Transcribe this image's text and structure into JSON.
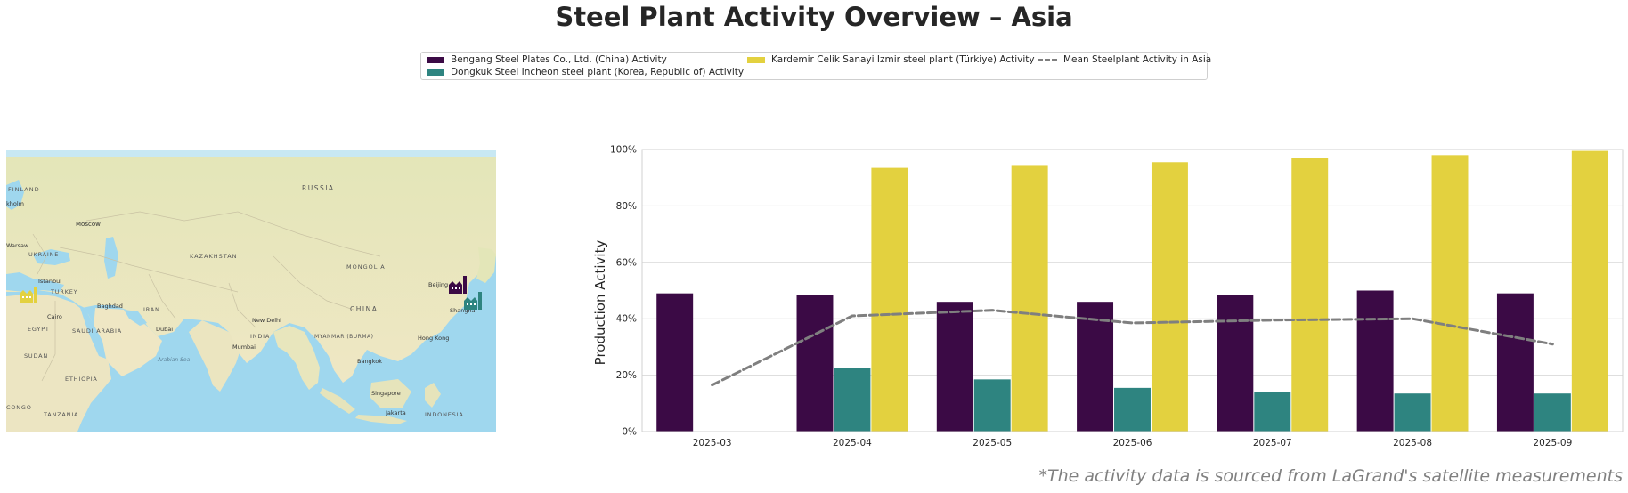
{
  "title": "Steel Plant Activity Overview – Asia",
  "legend": {
    "items": [
      {
        "label": "Bengang Steel Plates Co., Ltd. (China) Activity",
        "color": "#3b0a45"
      },
      {
        "label": "Dongkuk Steel Incheon steel plant (Korea, Republic of) Activity",
        "color": "#2e8480"
      },
      {
        "label": "Kardemir Celik Sanayi Izmir steel plant (Türkiye) Activity",
        "color": "#e3d13f"
      },
      {
        "label": "Mean Steelplant Activity in Asia",
        "color": "#7f7f7f"
      }
    ]
  },
  "map": {
    "labels": {
      "russia": "RUSSIA",
      "finland": "FINLAND",
      "stockholm": "kholm",
      "moscow": "Moscow",
      "warsaw": "Warsaw",
      "ukraine": "UKRAINE",
      "kazakhstan": "KAZAKHSTAN",
      "mongolia": "MONGOLIA",
      "istanbul": "Istanbul",
      "turkey": "TURKEY",
      "beijing": "Beijing",
      "baghdad": "Baghdad",
      "iran": "IRAN",
      "china": "CHINA",
      "shanghai": "Shanghai",
      "cairo": "Cairo",
      "egypt": "EGYPT",
      "saudi": "SAUDI ARABIA",
      "dubai": "Dubai",
      "new_delhi": "New Delhi",
      "india": "INDIA",
      "myanmar": "MYANMAR (BURMA)",
      "hong_kong": "Hong Kong",
      "mumbai": "Mumbai",
      "sudan": "SUDAN",
      "arabian_sea": "Arabian Sea",
      "bangkok": "Bangkok",
      "ethiopia": "ETHIOPIA",
      "singapore": "Singapore",
      "congo": "CONGO",
      "tanzania": "TANZANIA",
      "jakarta": "Jakarta",
      "indonesia": "INDONESIA"
    },
    "markers": [
      {
        "name": "Bengang Steel Plates",
        "icon": "factory-icon",
        "color": "#3b0a45"
      },
      {
        "name": "Dongkuk Steel Incheon",
        "icon": "factory-icon",
        "color": "#2e8480"
      },
      {
        "name": "Kardemir Celik Sanayi Izmir",
        "icon": "factory-icon",
        "color": "#e3d13f"
      }
    ]
  },
  "chart_data": {
    "type": "bar",
    "categories": [
      "2025-03",
      "2025-04",
      "2025-05",
      "2025-06",
      "2025-07",
      "2025-08",
      "2025-09"
    ],
    "series": [
      {
        "name": "Bengang Steel Plates Co., Ltd. (China) Activity",
        "color": "#3b0a45",
        "values": [
          49,
          48.5,
          46,
          46,
          48.5,
          50,
          49
        ]
      },
      {
        "name": "Dongkuk Steel Incheon steel plant (Korea, Republic of) Activity",
        "color": "#2e8480",
        "values": [
          null,
          22.5,
          18.5,
          15.5,
          14,
          13.5,
          13.5
        ]
      },
      {
        "name": "Kardemir Celik Sanayi Izmir steel plant (Türkiye) Activity",
        "color": "#e3d13f",
        "values": [
          null,
          93.5,
          94.5,
          95.5,
          97,
          98,
          99.5
        ]
      }
    ],
    "mean_line": {
      "name": "Mean Steelplant Activity in Asia",
      "color": "#7f7f7f",
      "values": [
        16.5,
        41,
        43,
        38.5,
        39.5,
        40,
        31
      ]
    },
    "ylabel": "Production Activity",
    "ylim": [
      0,
      100
    ],
    "yticks": [
      "0%",
      "20%",
      "40%",
      "60%",
      "80%",
      "100%"
    ],
    "grid": true
  },
  "source_note": "*The activity data is sourced from LaGrand's satellite measurements"
}
